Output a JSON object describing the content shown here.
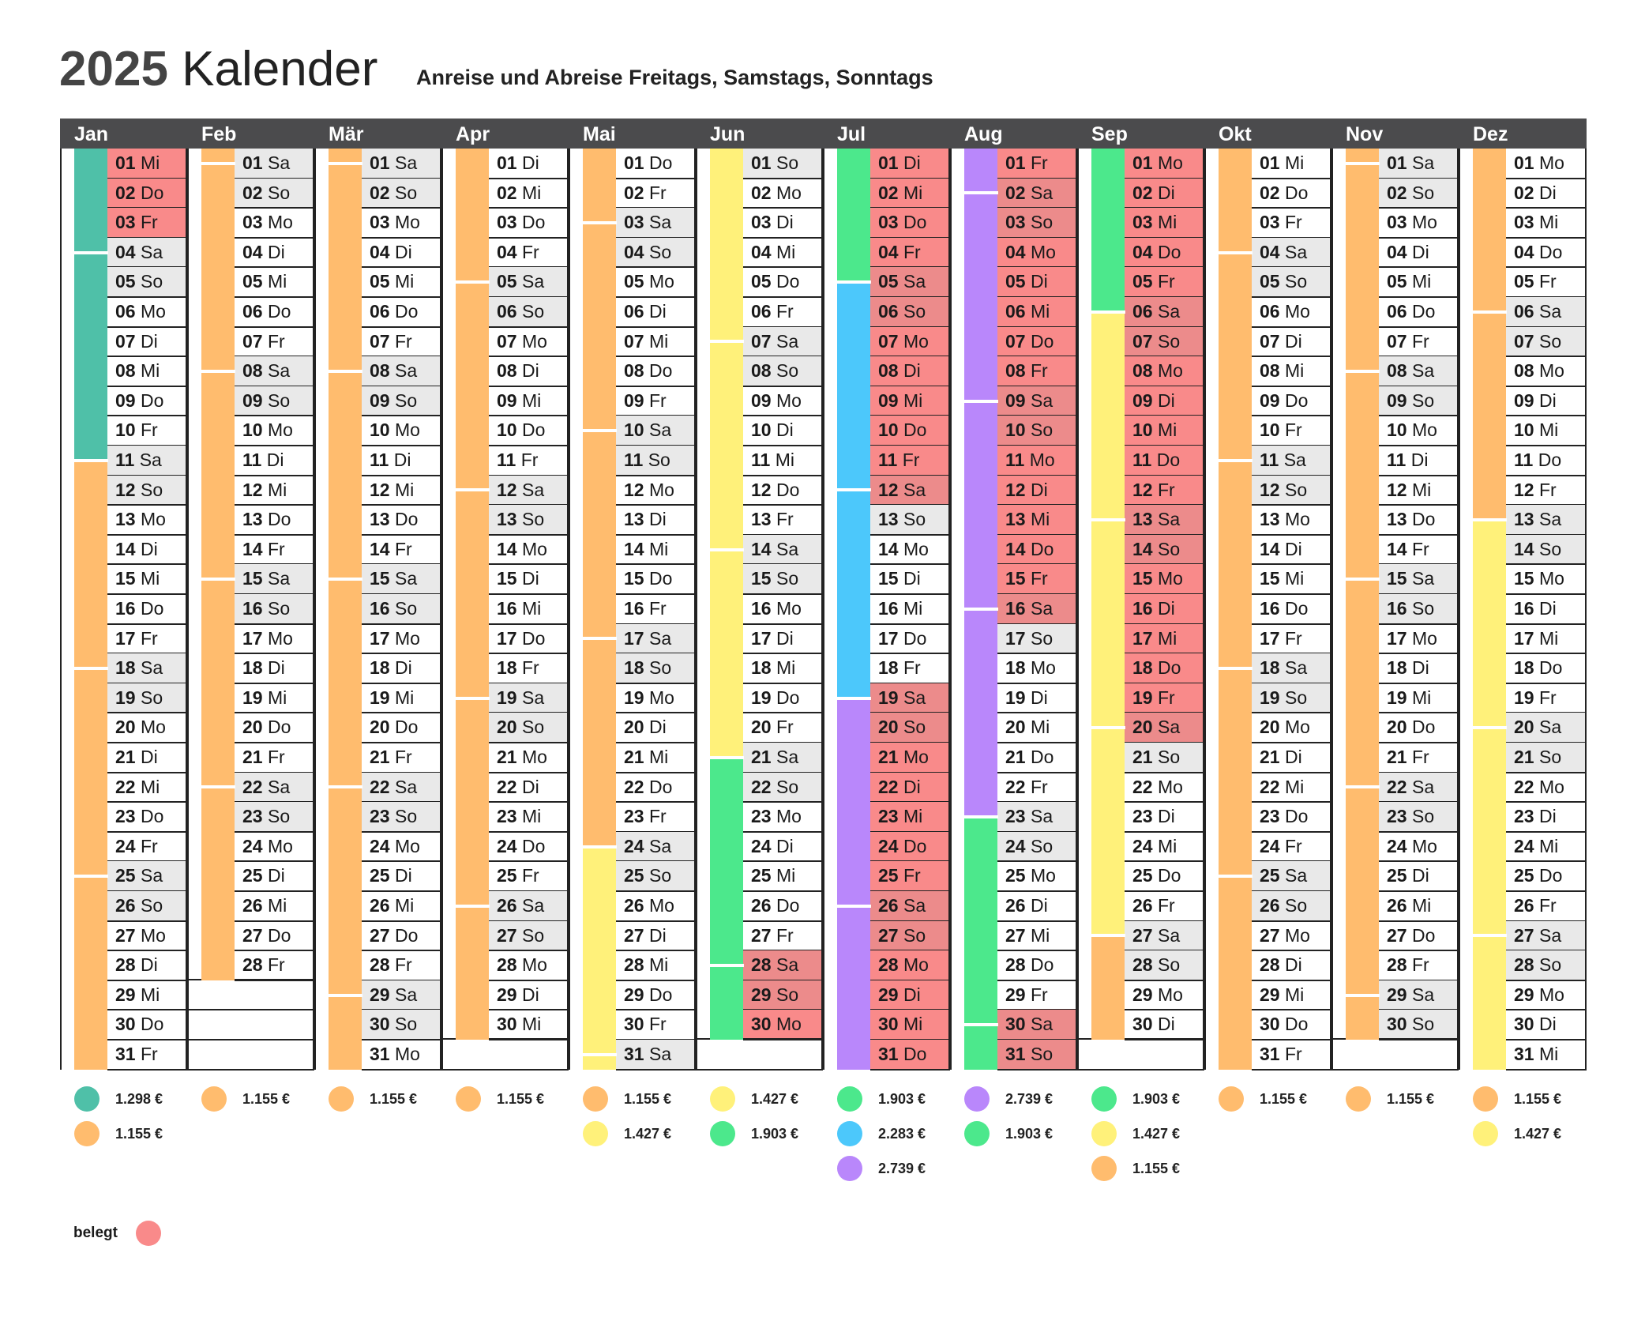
{
  "title_year": "2025",
  "title_word": "Kalender",
  "subtitle": "Anreise und Abreise Freitags, Samstags, Sonntags",
  "belegt_label": "belegt",
  "colors": {
    "teal": "#4fc0a8",
    "orange": "#ffbc6e",
    "yellow": "#fff17a",
    "green": "#4ce88c",
    "blue": "#4cc8fb",
    "purple": "#b987fb",
    "busy": "#f98a8a",
    "weekend": "#e9e9e9",
    "header": "#4b4b4d"
  },
  "months": [
    {
      "name": "Jan",
      "first_weekday": 2,
      "days": 31,
      "busy": [
        1,
        2,
        3
      ],
      "bars": [
        {
          "from": 1,
          "to": 11,
          "color": "teal"
        },
        {
          "from": 11,
          "to": 31,
          "color": "orange"
        }
      ],
      "changes": [
        4,
        11,
        18,
        25
      ],
      "legend": [
        {
          "color": "teal",
          "price": "1.298 €"
        },
        {
          "color": "orange",
          "price": "1.155 €"
        }
      ]
    },
    {
      "name": "Feb",
      "first_weekday": 5,
      "days": 28,
      "busy": [],
      "bars": [
        {
          "from": 1,
          "to": 28,
          "color": "orange"
        }
      ],
      "changes": [
        1,
        8,
        15,
        22
      ],
      "legend": [
        {
          "color": "orange",
          "price": "1.155 €"
        }
      ]
    },
    {
      "name": "Mär",
      "first_weekday": 5,
      "days": 31,
      "busy": [],
      "bars": [
        {
          "from": 1,
          "to": 31,
          "color": "orange"
        }
      ],
      "changes": [
        1,
        8,
        15,
        22,
        29
      ],
      "legend": [
        {
          "color": "orange",
          "price": "1.155 €"
        }
      ]
    },
    {
      "name": "Apr",
      "first_weekday": 1,
      "days": 30,
      "busy": [],
      "bars": [
        {
          "from": 1,
          "to": 30,
          "color": "orange"
        }
      ],
      "changes": [
        5,
        12,
        19,
        26
      ],
      "legend": [
        {
          "color": "orange",
          "price": "1.155 €"
        }
      ]
    },
    {
      "name": "Mai",
      "first_weekday": 3,
      "days": 31,
      "busy": [],
      "bars": [
        {
          "from": 1,
          "to": 24,
          "color": "orange"
        },
        {
          "from": 24,
          "to": 31,
          "color": "yellow"
        }
      ],
      "changes": [
        3,
        10,
        17,
        24,
        31
      ],
      "legend": [
        {
          "color": "orange",
          "price": "1.155 €"
        },
        {
          "color": "yellow",
          "price": "1.427 €"
        }
      ]
    },
    {
      "name": "Jun",
      "first_weekday": 6,
      "days": 30,
      "busy": [
        28,
        29,
        30
      ],
      "bars": [
        {
          "from": 1,
          "to": 21,
          "color": "yellow"
        },
        {
          "from": 21,
          "to": 30,
          "color": "green"
        }
      ],
      "changes": [
        7,
        14,
        21,
        28
      ],
      "legend": [
        {
          "color": "yellow",
          "price": "1.427 €"
        },
        {
          "color": "green",
          "price": "1.903 €"
        }
      ]
    },
    {
      "name": "Jul",
      "first_weekday": 1,
      "days": 31,
      "busy": [
        1,
        2,
        3,
        4,
        5,
        6,
        7,
        8,
        9,
        10,
        11,
        12,
        19,
        20,
        21,
        22,
        23,
        24,
        25,
        26,
        27,
        28,
        29,
        30,
        31
      ],
      "bars": [
        {
          "from": 1,
          "to": 5,
          "color": "green"
        },
        {
          "from": 5,
          "to": 19,
          "color": "blue"
        },
        {
          "from": 19,
          "to": 31,
          "color": "purple"
        }
      ],
      "changes": [
        5,
        12,
        19,
        26
      ],
      "legend": [
        {
          "color": "green",
          "price": "1.903 €"
        },
        {
          "color": "blue",
          "price": "2.283 €"
        },
        {
          "color": "purple",
          "price": "2.739 €"
        }
      ]
    },
    {
      "name": "Aug",
      "first_weekday": 4,
      "days": 31,
      "busy": [
        1,
        2,
        3,
        4,
        5,
        6,
        7,
        8,
        9,
        10,
        11,
        12,
        13,
        14,
        15,
        16,
        30,
        31
      ],
      "bars": [
        {
          "from": 1,
          "to": 23,
          "color": "purple"
        },
        {
          "from": 23,
          "to": 31,
          "color": "green"
        }
      ],
      "changes": [
        2,
        9,
        16,
        23,
        30
      ],
      "legend": [
        {
          "color": "purple",
          "price": "2.739 €"
        },
        {
          "color": "green",
          "price": "1.903 €"
        }
      ]
    },
    {
      "name": "Sep",
      "first_weekday": 0,
      "days": 30,
      "busy": [
        1,
        2,
        3,
        4,
        5,
        6,
        7,
        8,
        9,
        10,
        11,
        12,
        13,
        14,
        15,
        16,
        17,
        18,
        19,
        20
      ],
      "bars": [
        {
          "from": 1,
          "to": 6,
          "color": "green"
        },
        {
          "from": 6,
          "to": 27,
          "color": "yellow"
        },
        {
          "from": 27,
          "to": 30,
          "color": "orange"
        }
      ],
      "changes": [
        6,
        13,
        20,
        27
      ],
      "legend": [
        {
          "color": "green",
          "price": "1.903 €"
        },
        {
          "color": "yellow",
          "price": "1.427 €"
        },
        {
          "color": "orange",
          "price": "1.155 €"
        }
      ]
    },
    {
      "name": "Okt",
      "first_weekday": 2,
      "days": 31,
      "busy": [],
      "bars": [
        {
          "from": 1,
          "to": 31,
          "color": "orange"
        }
      ],
      "changes": [
        4,
        11,
        18,
        25
      ],
      "legend": [
        {
          "color": "orange",
          "price": "1.155 €"
        }
      ]
    },
    {
      "name": "Nov",
      "first_weekday": 5,
      "days": 30,
      "busy": [],
      "bars": [
        {
          "from": 1,
          "to": 30,
          "color": "orange"
        }
      ],
      "changes": [
        1,
        8,
        15,
        22,
        29
      ],
      "legend": [
        {
          "color": "orange",
          "price": "1.155 €"
        }
      ]
    },
    {
      "name": "Dez",
      "first_weekday": 0,
      "days": 31,
      "busy": [],
      "bars": [
        {
          "from": 1,
          "to": 13,
          "color": "orange"
        },
        {
          "from": 13,
          "to": 31,
          "color": "yellow"
        }
      ],
      "changes": [
        6,
        13,
        20,
        27
      ],
      "legend": [
        {
          "color": "orange",
          "price": "1.155 €"
        },
        {
          "color": "yellow",
          "price": "1.427 €"
        }
      ]
    }
  ],
  "weekday_names": [
    "Mo",
    "Di",
    "Mi",
    "Do",
    "Fr",
    "Sa",
    "So"
  ]
}
